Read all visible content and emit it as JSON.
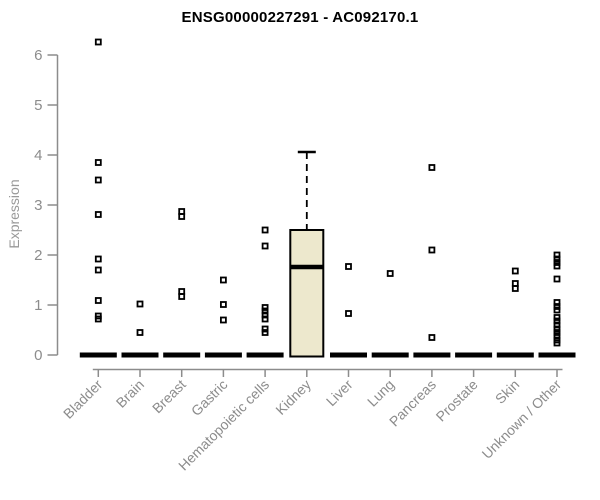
{
  "chart_data": {
    "type": "boxplot",
    "title": "ENSG00000227291 - AC092170.1",
    "xlabel": "",
    "ylabel": "Expression",
    "ylim": [
      0,
      6
    ],
    "yticks": [
      0,
      1,
      2,
      3,
      4,
      5,
      6
    ],
    "grid": false,
    "legend": "none",
    "categories": [
      "Bladder",
      "Brain",
      "Breast",
      "Gastric",
      "Hematopoietic cells",
      "Kidney",
      "Liver",
      "Lung",
      "Pancreas",
      "Prostate",
      "Skin",
      "Unknown / Other"
    ],
    "series": [
      {
        "name": "Bladder",
        "median": 0,
        "points": [
          6.26,
          3.85,
          3.5,
          2.81,
          1.92,
          1.7,
          1.09,
          0.78,
          0.72
        ]
      },
      {
        "name": "Brain",
        "median": 0,
        "points": [
          1.02,
          0.45
        ]
      },
      {
        "name": "Breast",
        "median": 0,
        "points": [
          2.87,
          2.77,
          1.27,
          1.17
        ]
      },
      {
        "name": "Gastric",
        "median": 0,
        "points": [
          1.5,
          1.01,
          0.7
        ]
      },
      {
        "name": "Hematopoietic cells",
        "median": 0,
        "points": [
          2.5,
          2.18,
          0.95,
          0.88,
          0.8,
          0.72,
          0.52,
          0.45
        ]
      },
      {
        "name": "Kidney",
        "median": 1.76,
        "box": {
          "q1": 0,
          "q3": 2.5,
          "whisker_low": 0,
          "whisker_high": 4.06
        },
        "points": []
      },
      {
        "name": "Liver",
        "median": 0,
        "points": [
          1.77,
          0.83
        ]
      },
      {
        "name": "Lung",
        "median": 0,
        "points": [
          1.63
        ]
      },
      {
        "name": "Pancreas",
        "median": 0,
        "points": [
          3.75,
          2.1,
          0.35
        ]
      },
      {
        "name": "Prostate",
        "median": 0,
        "points": []
      },
      {
        "name": "Skin",
        "median": 0,
        "points": [
          1.68,
          1.43,
          1.33
        ]
      },
      {
        "name": "Unknown / Other",
        "median": 0,
        "points": [
          2.0,
          1.92,
          1.85,
          1.78,
          1.52,
          1.05,
          0.97,
          0.9,
          0.75,
          0.68,
          0.6,
          0.52,
          0.45,
          0.38,
          0.3,
          0.24
        ]
      }
    ],
    "colors": {
      "axis": "#8c8c8c",
      "tick_label": "#8c8c8c",
      "title": "#000000",
      "point": "#000000",
      "median": "#000000",
      "box_fill": "#ede8cd",
      "box_border": "#000000"
    }
  }
}
